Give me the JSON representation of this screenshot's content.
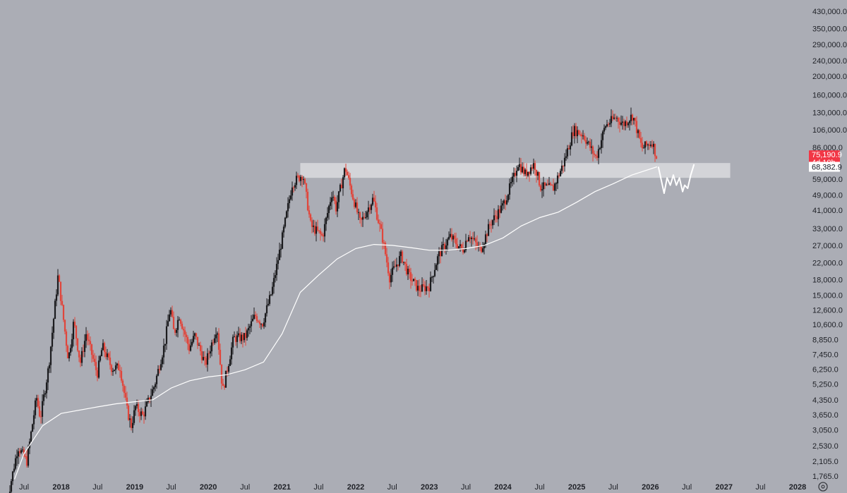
{
  "chart_data": {
    "type": "candlestick",
    "y_scale": "log",
    "ylim": [
      1600,
      480000
    ],
    "y_ticks": [
      "430,000.0",
      "350,000.0",
      "290,000.0",
      "240,000.0",
      "200,000.0",
      "160,000.0",
      "130,000.0",
      "106,000.0",
      "86,000.0",
      "59,000.0",
      "49,000.0",
      "41,000.0",
      "33,000.0",
      "27,000.0",
      "22,000.0",
      "18,000.0",
      "15,000.0",
      "12,600.0",
      "10,600.0",
      "8,850.0",
      "7,450.0",
      "6,250.0",
      "5,250.0",
      "4,350.0",
      "3,650.0",
      "3,050.0",
      "2,530.0",
      "2,105.0",
      "1,765.0"
    ],
    "x_ticks": [
      {
        "label": "Jul",
        "date": "2017-07-01",
        "year": false
      },
      {
        "label": "2018",
        "date": "2018-01-01",
        "year": true
      },
      {
        "label": "Jul",
        "date": "2018-07-01",
        "year": false
      },
      {
        "label": "2019",
        "date": "2019-01-01",
        "year": true
      },
      {
        "label": "Jul",
        "date": "2019-07-01",
        "year": false
      },
      {
        "label": "2020",
        "date": "2020-01-01",
        "year": true
      },
      {
        "label": "Jul",
        "date": "2020-07-01",
        "year": false
      },
      {
        "label": "2021",
        "date": "2021-01-01",
        "year": true
      },
      {
        "label": "Jul",
        "date": "2021-07-01",
        "year": false
      },
      {
        "label": "2022",
        "date": "2022-01-01",
        "year": true
      },
      {
        "label": "Jul",
        "date": "2022-07-01",
        "year": false
      },
      {
        "label": "2023",
        "date": "2023-01-01",
        "year": true
      },
      {
        "label": "Jul",
        "date": "2023-07-01",
        "year": false
      },
      {
        "label": "2024",
        "date": "2024-01-01",
        "year": true
      },
      {
        "label": "Jul",
        "date": "2024-07-01",
        "year": false
      },
      {
        "label": "2025",
        "date": "2025-01-01",
        "year": true
      },
      {
        "label": "Jul",
        "date": "2025-07-01",
        "year": false
      },
      {
        "label": "2026",
        "date": "2026-01-01",
        "year": true
      },
      {
        "label": "Jul",
        "date": "2026-07-01",
        "year": false
      },
      {
        "label": "2027",
        "date": "2027-01-01",
        "year": true
      },
      {
        "label": "Jul",
        "date": "2027-07-01",
        "year": false
      },
      {
        "label": "2028",
        "date": "2028-01-01",
        "year": true
      }
    ],
    "price_path": [
      [
        "2017-04-01",
        1200
      ],
      [
        "2017-06-01",
        2500
      ],
      [
        "2017-07-15",
        2100
      ],
      [
        "2017-09-01",
        4500
      ],
      [
        "2017-09-20",
        3500
      ],
      [
        "2017-11-01",
        6500
      ],
      [
        "2017-12-17",
        19000
      ],
      [
        "2018-02-06",
        7000
      ],
      [
        "2018-03-05",
        11000
      ],
      [
        "2018-04-06",
        6700
      ],
      [
        "2018-05-05",
        9500
      ],
      [
        "2018-06-29",
        5900
      ],
      [
        "2018-07-25",
        8200
      ],
      [
        "2018-09-10",
        6300
      ],
      [
        "2018-10-20",
        6400
      ],
      [
        "2018-11-25",
        3800
      ],
      [
        "2018-12-15",
        3200
      ],
      [
        "2019-01-05",
        4000
      ],
      [
        "2019-02-10",
        3600
      ],
      [
        "2019-04-10",
        5200
      ],
      [
        "2019-05-30",
        8500
      ],
      [
        "2019-06-26",
        13000
      ],
      [
        "2019-07-15",
        9500
      ],
      [
        "2019-08-10",
        11800
      ],
      [
        "2019-09-28",
        8000
      ],
      [
        "2019-10-26",
        9300
      ],
      [
        "2019-12-17",
        6600
      ],
      [
        "2020-02-13",
        10400
      ],
      [
        "2020-03-12",
        4800
      ],
      [
        "2020-05-05",
        9000
      ],
      [
        "2020-07-01",
        9100
      ],
      [
        "2020-08-20",
        11800
      ],
      [
        "2020-09-25",
        10700
      ],
      [
        "2020-11-10",
        15500
      ],
      [
        "2020-12-31",
        29000
      ],
      [
        "2021-02-20",
        56000
      ],
      [
        "2021-04-14",
        63000
      ],
      [
        "2021-05-23",
        34000
      ],
      [
        "2021-07-20",
        30000
      ],
      [
        "2021-09-06",
        51000
      ],
      [
        "2021-09-25",
        42000
      ],
      [
        "2021-11-10",
        68000
      ],
      [
        "2021-12-20",
        47000
      ],
      [
        "2022-01-24",
        35000
      ],
      [
        "2022-03-28",
        47000
      ],
      [
        "2022-05-15",
        29000
      ],
      [
        "2022-06-18",
        18500
      ],
      [
        "2022-08-15",
        24000
      ],
      [
        "2022-09-20",
        19000
      ],
      [
        "2022-11-09",
        16000
      ],
      [
        "2022-12-31",
        16700
      ],
      [
        "2023-02-15",
        24000
      ],
      [
        "2023-04-14",
        30000
      ],
      [
        "2023-06-15",
        25500
      ],
      [
        "2023-07-14",
        31000
      ],
      [
        "2023-09-11",
        25500
      ],
      [
        "2023-10-30",
        35000
      ],
      [
        "2023-12-31",
        43000
      ],
      [
        "2024-02-28",
        62000
      ],
      [
        "2024-03-14",
        72000
      ],
      [
        "2024-04-20",
        63000
      ],
      [
        "2024-06-05",
        71000
      ],
      [
        "2024-07-05",
        54000
      ],
      [
        "2024-09-06",
        53000
      ],
      [
        "2024-10-29",
        72000
      ],
      [
        "2024-12-16",
        106000
      ],
      [
        "2025-02-01",
        100000
      ],
      [
        "2025-04-07",
        76000
      ],
      [
        "2025-05-22",
        111000
      ],
      [
        "2025-07-14",
        123000
      ],
      [
        "2025-08-20",
        113000
      ],
      [
        "2025-10-06",
        126000
      ],
      [
        "2025-11-20",
        85000
      ],
      [
        "2026-01-10",
        92000
      ],
      [
        "2026-02-03",
        75190.9
      ]
    ],
    "moving_average": [
      [
        "2017-05-15",
        1700
      ],
      [
        "2017-07-01",
        2300
      ],
      [
        "2017-10-01",
        3200
      ],
      [
        "2018-01-01",
        3700
      ],
      [
        "2018-07-01",
        4000
      ],
      [
        "2018-10-01",
        4150
      ],
      [
        "2019-01-01",
        4250
      ],
      [
        "2019-04-01",
        4350
      ],
      [
        "2019-07-01",
        5000
      ],
      [
        "2019-10-01",
        5450
      ],
      [
        "2020-01-01",
        5700
      ],
      [
        "2020-04-01",
        5850
      ],
      [
        "2020-07-01",
        6200
      ],
      [
        "2020-10-01",
        6800
      ],
      [
        "2021-01-01",
        9500
      ],
      [
        "2021-04-01",
        15500
      ],
      [
        "2021-07-01",
        19000
      ],
      [
        "2021-10-01",
        23000
      ],
      [
        "2022-01-01",
        26000
      ],
      [
        "2022-04-01",
        27300
      ],
      [
        "2022-07-01",
        27000
      ],
      [
        "2022-10-01",
        26300
      ],
      [
        "2023-01-01",
        25500
      ],
      [
        "2023-04-01",
        25500
      ],
      [
        "2023-07-01",
        26000
      ],
      [
        "2023-10-01",
        27000
      ],
      [
        "2024-01-01",
        29500
      ],
      [
        "2024-04-01",
        34000
      ],
      [
        "2024-07-01",
        37500
      ],
      [
        "2024-10-01",
        40000
      ],
      [
        "2025-01-01",
        45000
      ],
      [
        "2025-04-01",
        51000
      ],
      [
        "2025-07-01",
        56000
      ],
      [
        "2025-10-01",
        62000
      ],
      [
        "2026-02-03",
        68382.9
      ]
    ],
    "projection_path": [
      [
        "2026-02-10",
        68000
      ],
      [
        "2026-03-10",
        50000
      ],
      [
        "2026-03-25",
        60000
      ],
      [
        "2026-04-10",
        55000
      ],
      [
        "2026-04-25",
        62000
      ],
      [
        "2026-05-10",
        55000
      ],
      [
        "2026-05-25",
        60000
      ],
      [
        "2026-06-10",
        51000
      ],
      [
        "2026-06-20",
        55000
      ],
      [
        "2026-07-05",
        53000
      ],
      [
        "2026-07-20",
        62000
      ],
      [
        "2026-08-05",
        70000
      ]
    ],
    "zone": {
      "start": "2021-04-01",
      "end": "2027-02-01",
      "low": 60000,
      "high": 71500
    },
    "price_badge": {
      "value": "75,190.9",
      "countdown": "4d 10h",
      "color": "#f23645"
    },
    "ma_badge": {
      "value": "68,382.9",
      "color": "#ffffff"
    },
    "colors": {
      "up": "#1c1c1f",
      "down": "#e0463c",
      "ma": "#ffffff",
      "zone": "#d9dade"
    },
    "settings_icon": "gear-icon"
  }
}
